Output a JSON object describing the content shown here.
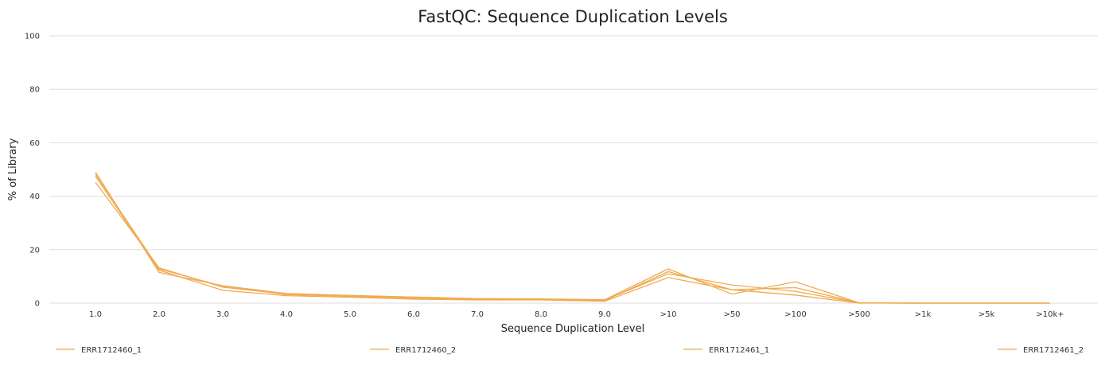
{
  "chart_data": {
    "type": "line",
    "title": "FastQC: Sequence Duplication Levels",
    "xlabel": "Sequence Duplication Level",
    "ylabel": "% of Library",
    "categories": [
      "1.0",
      "2.0",
      "3.0",
      "4.0",
      "5.0",
      "6.0",
      "7.0",
      "8.0",
      "9.0",
      ">10",
      ">50",
      ">100",
      ">500",
      ">1k",
      ">5k",
      ">10k+"
    ],
    "ylim": [
      0,
      100
    ],
    "yticks": [
      "0",
      "20",
      "40",
      "60",
      "80",
      "100"
    ],
    "grid": true,
    "legend_position": "bottom",
    "series_color": "#f0ab51",
    "series": [
      {
        "name": "ERR1712460_1",
        "values": [
          49.0,
          11.5,
          6.5,
          3.6,
          2.9,
          2.3,
          1.7,
          1.6,
          1.3,
          12.8,
          3.4,
          8.0,
          0.1,
          0.0,
          0.0,
          0.0
        ]
      },
      {
        "name": "ERR1712460_2",
        "values": [
          45.2,
          13.2,
          6.0,
          3.3,
          2.7,
          1.9,
          1.5,
          1.4,
          1.1,
          11.0,
          6.8,
          4.4,
          0.1,
          0.0,
          0.0,
          0.0
        ]
      },
      {
        "name": "ERR1712461_1",
        "values": [
          47.5,
          12.3,
          4.8,
          2.8,
          2.2,
          1.5,
          1.2,
          1.2,
          0.7,
          9.6,
          5.0,
          3.0,
          0.0,
          0.0,
          0.0,
          0.0
        ]
      },
      {
        "name": "ERR1712461_2",
        "values": [
          48.3,
          12.8,
          6.3,
          3.2,
          2.5,
          1.8,
          1.4,
          1.3,
          1.0,
          11.8,
          5.0,
          5.8,
          0.1,
          0.0,
          0.0,
          0.0
        ]
      }
    ]
  }
}
